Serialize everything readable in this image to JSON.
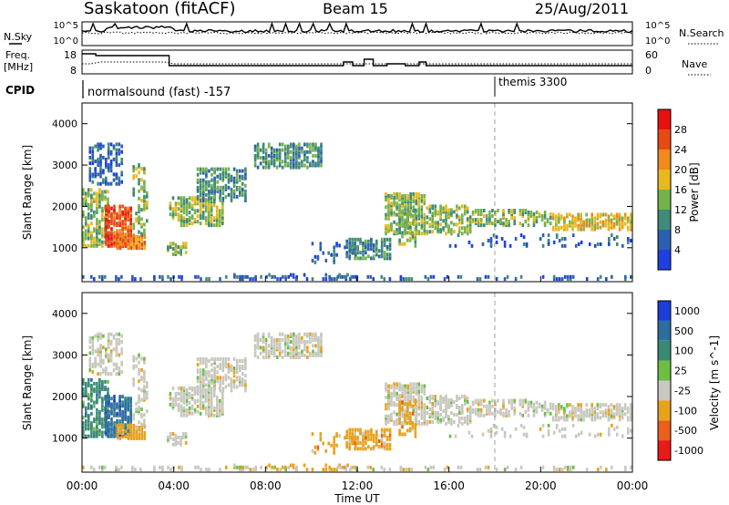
{
  "header": {
    "station": "Saskatoon (fitACF)",
    "beam": "Beam 15",
    "date": "25/Aug/2011"
  },
  "noise_panel": {
    "left_label": "N.Sky",
    "left_ticks": [
      "10^5",
      "10^0"
    ],
    "right_label": "N.Search",
    "right_ticks": [
      "10^5",
      "10^0"
    ]
  },
  "freq_panel": {
    "left_label_line1": "Freq.",
    "left_label_line2": "[MHz]",
    "left_ticks": [
      "18",
      "8"
    ],
    "right_label": "Nave",
    "right_ticks": [
      "60",
      "0"
    ]
  },
  "cpid": {
    "label": "CPID",
    "mode1": "normalsound (fast) -157",
    "mode2": "themis 3300",
    "mode2_start_hour": 18
  },
  "time_axis": {
    "label": "Time UT",
    "ticks": [
      "00:00",
      "04:00",
      "08:00",
      "12:00",
      "16:00",
      "20:00",
      "00:00"
    ]
  },
  "colors": {
    "power": [
      "#1f3fe0",
      "#2d5fb0",
      "#3f8a78",
      "#74b24b",
      "#e8b81f",
      "#f08a1a",
      "#e84a16",
      "#e81010"
    ],
    "velocity": [
      "#1d3fd6",
      "#2c6f9e",
      "#3b8a74",
      "#6dbe45",
      "#c8c8c0",
      "#e8a21c",
      "#e8601a",
      "#e81a1a"
    ]
  },
  "chart_data": [
    {
      "type": "heatmap",
      "title": "Power",
      "ylabel": "Slant Range [km]",
      "xlabel": "Time UT",
      "ylim": [
        180,
        4500
      ],
      "yticks": [
        1000,
        2000,
        3000,
        4000
      ],
      "colorbar_label": "Power [dB]",
      "colorbar_ticks": [
        "4",
        "8",
        "12",
        "16",
        "20",
        "24",
        "28"
      ],
      "colorbar_range": [
        0,
        30
      ]
    },
    {
      "type": "heatmap",
      "title": "Velocity",
      "ylabel": "Slant Range [km]",
      "xlabel": "Time UT",
      "ylim": [
        180,
        4500
      ],
      "yticks": [
        1000,
        2000,
        3000,
        4000
      ],
      "colorbar_label": "Velocity [m s^-1]",
      "colorbar_ticks": [
        "1000",
        "500",
        "100",
        "25",
        "-25",
        "-100",
        "-500",
        "-1000"
      ]
    }
  ]
}
